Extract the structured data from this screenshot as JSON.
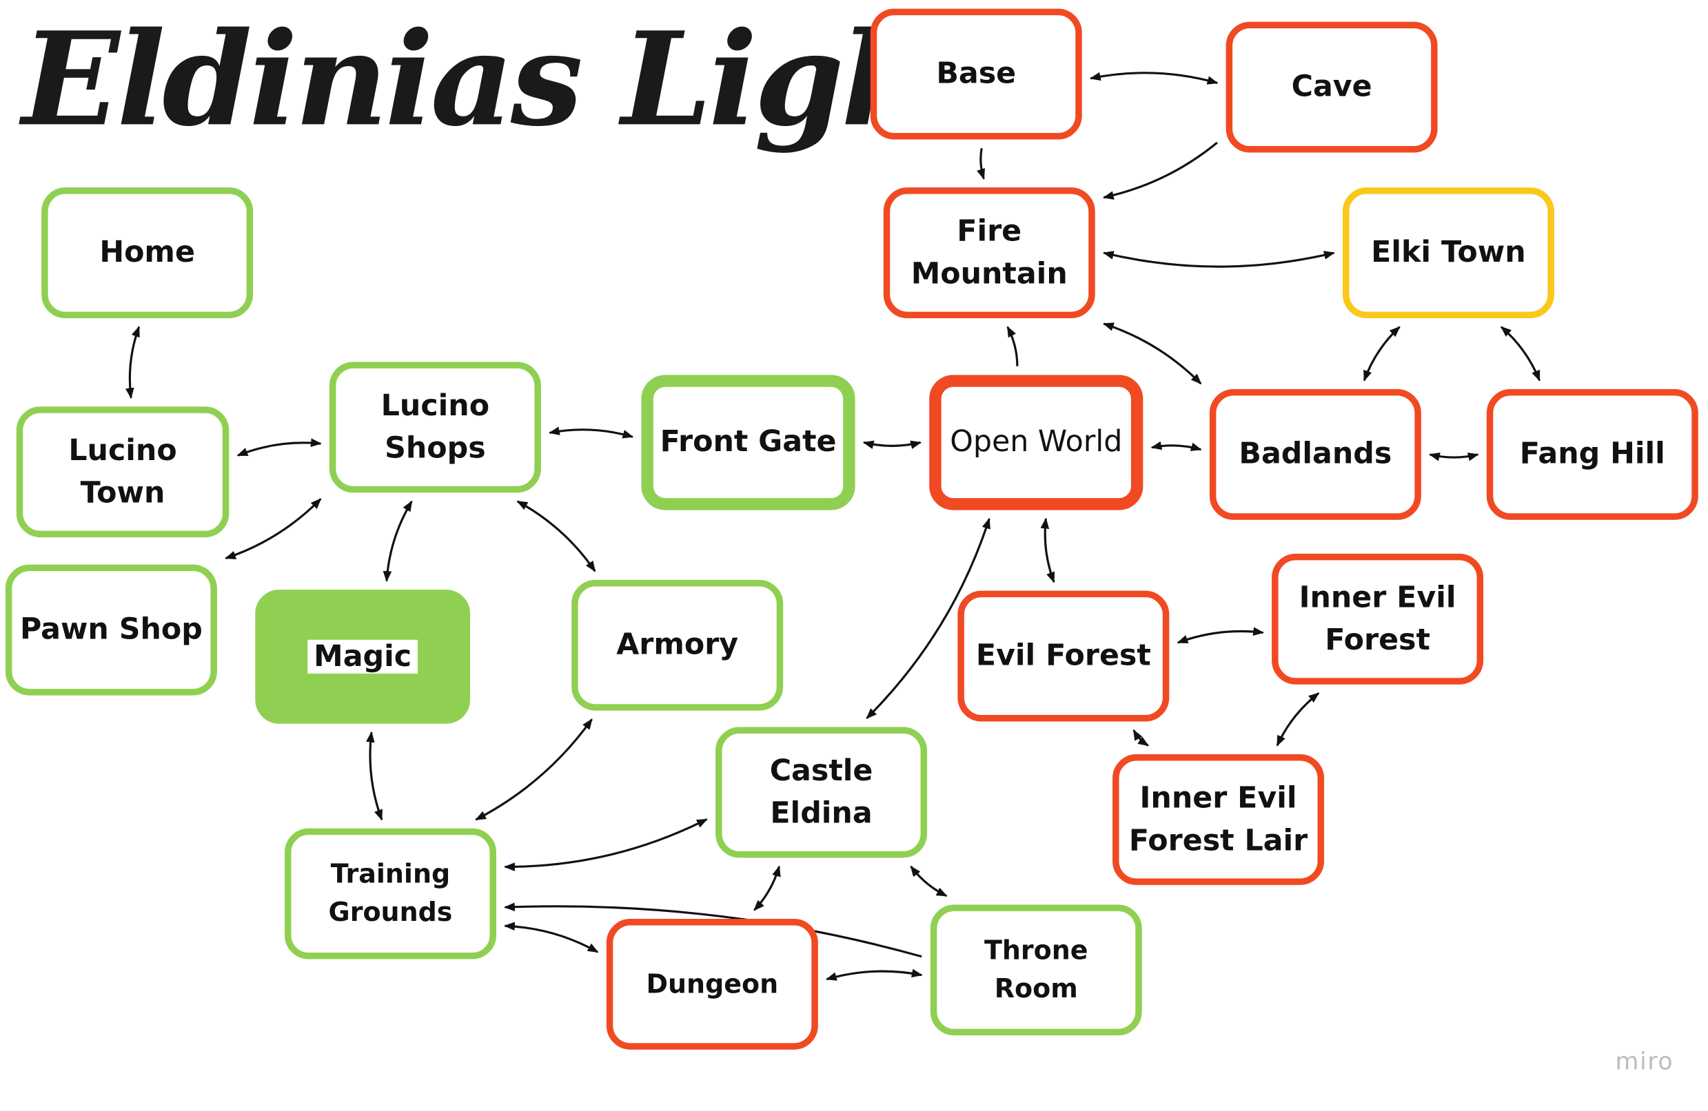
{
  "title": "Eldinias Light",
  "watermark": "miro",
  "colors": {
    "green": "#8fd052",
    "red": "#f04a23",
    "yellow": "#f9c81a",
    "arrow": "#111111"
  },
  "nodes": {
    "home": "Home",
    "lucino_town": "Lucino Town",
    "lucino_shops": "Lucino\nShops",
    "pawn_shop": "Pawn Shop",
    "magic": "Magic",
    "armory": "Armory",
    "front_gate": "Front Gate",
    "training_grounds": "Training\nGrounds",
    "castle_eldina": "Castle Eldina",
    "dungeon": "Dungeon",
    "throne_room": "Throne Room",
    "open_world": "Open World",
    "base": "Base",
    "cave": "Cave",
    "fire_mountain": "Fire\nMountain",
    "elki_town": "Elki Town",
    "badlands": "Badlands",
    "fang_hill": "Fang Hill",
    "evil_forest": "Evil Forest",
    "inner_evil_forest": "Inner Evil\nForest",
    "inner_evil_forest_lair": "Inner Evil\nForest Lair"
  },
  "node_colors": {
    "home": "green",
    "lucino_town": "green",
    "lucino_shops": "green",
    "pawn_shop": "green",
    "magic": "green",
    "armory": "green",
    "front_gate": "green",
    "training_grounds": "green",
    "castle_eldina": "green",
    "throne_room": "green",
    "dungeon": "red",
    "open_world": "red",
    "base": "red",
    "cave": "red",
    "fire_mountain": "red",
    "badlands": "red",
    "fang_hill": "red",
    "evil_forest": "red",
    "inner_evil_forest": "red",
    "inner_evil_forest_lair": "red",
    "elki_town": "yellow"
  },
  "edges": [
    {
      "from": "home",
      "to": "lucino_town",
      "direction": "both"
    },
    {
      "from": "lucino_town",
      "to": "lucino_shops",
      "direction": "both"
    },
    {
      "from": "pawn_shop",
      "to": "lucino_shops",
      "direction": "both"
    },
    {
      "from": "lucino_shops",
      "to": "front_gate",
      "direction": "both"
    },
    {
      "from": "lucino_shops",
      "to": "magic",
      "direction": "both"
    },
    {
      "from": "lucino_shops",
      "to": "armory",
      "direction": "both"
    },
    {
      "from": "magic",
      "to": "training_grounds",
      "direction": "both"
    },
    {
      "from": "armory",
      "to": "training_grounds",
      "direction": "both"
    },
    {
      "from": "training_grounds",
      "to": "castle_eldina",
      "direction": "both"
    },
    {
      "from": "training_grounds",
      "to": "dungeon",
      "direction": "both"
    },
    {
      "from": "throne_room",
      "to": "training_grounds",
      "direction": "forward"
    },
    {
      "from": "castle_eldina",
      "to": "dungeon",
      "direction": "both"
    },
    {
      "from": "castle_eldina",
      "to": "throne_room",
      "direction": "both"
    },
    {
      "from": "dungeon",
      "to": "throne_room",
      "direction": "both"
    },
    {
      "from": "front_gate",
      "to": "open_world",
      "direction": "both"
    },
    {
      "from": "open_world",
      "to": "castle_eldina",
      "direction": "both"
    },
    {
      "from": "open_world",
      "to": "fire_mountain",
      "direction": "forward"
    },
    {
      "from": "open_world",
      "to": "badlands",
      "direction": "both"
    },
    {
      "from": "open_world",
      "to": "evil_forest",
      "direction": "both"
    },
    {
      "from": "base",
      "to": "cave",
      "direction": "both"
    },
    {
      "from": "base",
      "to": "fire_mountain",
      "direction": "forward"
    },
    {
      "from": "cave",
      "to": "fire_mountain",
      "direction": "forward"
    },
    {
      "from": "fire_mountain",
      "to": "elki_town",
      "direction": "both"
    },
    {
      "from": "fire_mountain",
      "to": "badlands",
      "direction": "both"
    },
    {
      "from": "elki_town",
      "to": "badlands",
      "direction": "both"
    },
    {
      "from": "elki_town",
      "to": "fang_hill",
      "direction": "both"
    },
    {
      "from": "badlands",
      "to": "fang_hill",
      "direction": "both"
    },
    {
      "from": "evil_forest",
      "to": "inner_evil_forest",
      "direction": "both"
    },
    {
      "from": "evil_forest",
      "to": "inner_evil_forest_lair",
      "direction": "both"
    },
    {
      "from": "inner_evil_forest_lair",
      "to": "inner_evil_forest",
      "direction": "both"
    }
  ]
}
